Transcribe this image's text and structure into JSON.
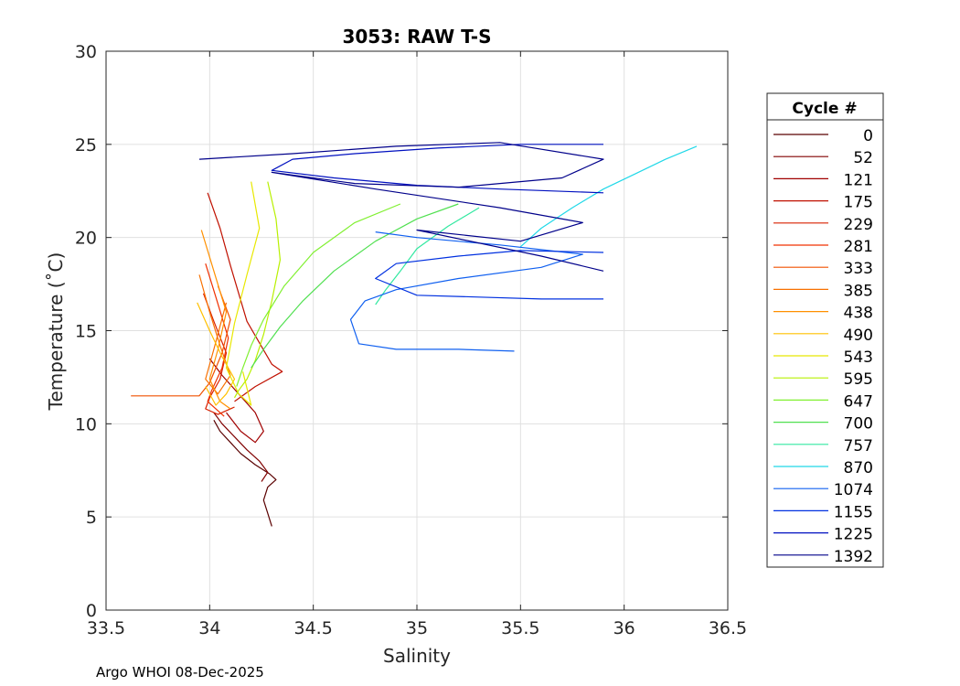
{
  "chart_data": {
    "type": "line",
    "title": "3053: RAW T-S",
    "xlabel": "Salinity",
    "ylabel": "Temperature (˚C)",
    "xlim": [
      33.5,
      36.5
    ],
    "ylim": [
      0,
      30
    ],
    "xticks": [
      "33.5",
      "34",
      "34.5",
      "35",
      "35.5",
      "36",
      "36.5"
    ],
    "yticks": [
      "0",
      "5",
      "10",
      "15",
      "20",
      "25",
      "30"
    ],
    "grid": true,
    "legend": {
      "title": "Cycle #",
      "position": "right",
      "entries": [
        "0",
        "52",
        "121",
        "175",
        "229",
        "281",
        "333",
        "385",
        "438",
        "490",
        "543",
        "595",
        "647",
        "700",
        "757",
        "870",
        "1074",
        "1155",
        "1225",
        "1392"
      ]
    },
    "series": [
      {
        "name": "0",
        "color": "#5a0000",
        "x": [
          34.3,
          34.28,
          34.26,
          34.28,
          34.32,
          34.29,
          34.22,
          34.15,
          34.1,
          34.05,
          34.02
        ],
        "y": [
          4.5,
          5.2,
          5.9,
          6.6,
          7.0,
          7.3,
          7.8,
          8.4,
          9.0,
          9.6,
          10.2
        ]
      },
      {
        "name": "52",
        "color": "#800000",
        "x": [
          34.02,
          34.06,
          34.12,
          34.18,
          34.24,
          34.28,
          34.25
        ],
        "y": [
          10.6,
          10.0,
          9.3,
          8.6,
          8.0,
          7.4,
          6.9
        ]
      },
      {
        "name": "121",
        "color": "#a00000",
        "x": [
          34.0,
          34.06,
          34.14,
          34.22,
          34.26,
          34.22,
          34.15,
          34.08
        ],
        "y": [
          13.5,
          12.6,
          11.6,
          10.6,
          9.6,
          9.0,
          9.6,
          10.6
        ]
      },
      {
        "name": "175",
        "color": "#c01000",
        "x": [
          33.99,
          34.05,
          34.1,
          34.18,
          34.3,
          34.35,
          34.22,
          34.12
        ],
        "y": [
          22.4,
          20.5,
          18.5,
          15.5,
          13.2,
          12.8,
          12.0,
          11.2
        ]
      },
      {
        "name": "229",
        "color": "#d82000",
        "x": [
          33.97,
          34.02,
          34.08,
          34.05,
          34.0,
          33.98,
          34.04,
          34.12
        ],
        "y": [
          17.0,
          15.5,
          13.8,
          12.4,
          11.4,
          10.8,
          10.5,
          10.9
        ]
      },
      {
        "name": "281",
        "color": "#f03000",
        "x": [
          33.98,
          34.03,
          34.09,
          34.06,
          34.01,
          33.99,
          34.07
        ],
        "y": [
          18.6,
          16.8,
          14.6,
          13.0,
          11.8,
          11.2,
          10.4
        ]
      },
      {
        "name": "333",
        "color": "#f05000",
        "x": [
          33.62,
          33.8,
          33.95,
          34.0,
          34.06,
          34.1,
          34.04
        ],
        "y": [
          11.5,
          11.5,
          11.5,
          12.2,
          13.8,
          15.6,
          17.4
        ]
      },
      {
        "name": "385",
        "color": "#f87000",
        "x": [
          33.95,
          34.0,
          34.05,
          34.1,
          34.04,
          33.98,
          34.02,
          34.08
        ],
        "y": [
          18.0,
          16.0,
          14.2,
          12.6,
          11.6,
          12.4,
          14.0,
          16.5
        ]
      },
      {
        "name": "438",
        "color": "#ff9000",
        "x": [
          33.96,
          34.02,
          34.08,
          34.04,
          34.0,
          34.05,
          34.1
        ],
        "y": [
          20.4,
          18.2,
          16.0,
          14.0,
          12.4,
          11.2,
          10.8
        ]
      },
      {
        "name": "490",
        "color": "#ffc000",
        "x": [
          33.94,
          34.0,
          34.06,
          34.12,
          34.08,
          34.03,
          33.98
        ],
        "y": [
          16.5,
          15.0,
          13.6,
          12.4,
          11.6,
          11.0,
          12.0
        ]
      },
      {
        "name": "543",
        "color": "#e8e800",
        "x": [
          34.2,
          34.24,
          34.18,
          34.12,
          34.08,
          34.14,
          34.2,
          34.16
        ],
        "y": [
          23.0,
          20.5,
          18.0,
          15.4,
          13.0,
          11.6,
          11.0,
          12.8
        ]
      },
      {
        "name": "595",
        "color": "#b8f000",
        "x": [
          34.28,
          34.32,
          34.34,
          34.3,
          34.26,
          34.22,
          34.18,
          34.14,
          34.12
        ],
        "y": [
          23.0,
          21.0,
          18.8,
          16.6,
          14.8,
          13.4,
          12.4,
          11.8,
          11.4
        ]
      },
      {
        "name": "647",
        "color": "#80f030",
        "x": [
          34.92,
          34.7,
          34.5,
          34.36,
          34.26,
          34.2,
          34.16,
          34.13
        ],
        "y": [
          21.8,
          20.8,
          19.2,
          17.4,
          15.6,
          14.2,
          13.0,
          12.0
        ]
      },
      {
        "name": "700",
        "color": "#50e050",
        "x": [
          35.2,
          35.0,
          34.8,
          34.6,
          34.45,
          34.34,
          34.26,
          34.2
        ],
        "y": [
          21.8,
          21.0,
          19.8,
          18.2,
          16.6,
          15.2,
          14.0,
          13.0
        ]
      },
      {
        "name": "757",
        "color": "#30e8a0",
        "x": [
          35.3,
          35.15,
          35.0,
          34.92,
          34.85,
          34.8
        ],
        "y": [
          21.6,
          20.6,
          19.4,
          18.2,
          17.2,
          16.4
        ]
      },
      {
        "name": "870",
        "color": "#20d8e8",
        "x": [
          36.35,
          36.2,
          36.05,
          35.9,
          35.75,
          35.6,
          35.5
        ],
        "y": [
          24.9,
          24.2,
          23.4,
          22.6,
          21.6,
          20.5,
          19.5
        ]
      },
      {
        "name": "1074",
        "color": "#1060f0",
        "x": [
          35.47,
          35.2,
          34.9,
          34.72,
          34.68,
          34.75,
          34.9,
          35.2,
          35.6,
          35.8,
          35.4,
          35.0,
          34.8
        ],
        "y": [
          13.9,
          14.0,
          14.0,
          14.3,
          15.6,
          16.6,
          17.2,
          17.8,
          18.4,
          19.1,
          19.6,
          20.0,
          20.3
        ]
      },
      {
        "name": "1155",
        "color": "#0030e0",
        "x": [
          35.9,
          35.6,
          35.3,
          35.0,
          34.8,
          34.9,
          35.2,
          35.5,
          35.9
        ],
        "y": [
          16.7,
          16.7,
          16.8,
          16.9,
          17.8,
          18.6,
          19.0,
          19.3,
          19.2
        ]
      },
      {
        "name": "1225",
        "color": "#0010c0",
        "x": [
          35.9,
          35.5,
          35.1,
          34.7,
          34.4,
          34.3,
          34.6,
          35.0,
          35.4,
          35.9
        ],
        "y": [
          25.0,
          25.0,
          24.8,
          24.5,
          24.2,
          23.6,
          23.2,
          22.8,
          22.6,
          22.4
        ]
      },
      {
        "name": "1392",
        "color": "#00008a",
        "x": [
          33.95,
          34.4,
          34.9,
          35.4,
          35.9,
          35.7,
          35.2,
          34.7,
          34.3,
          34.8,
          35.4,
          35.8,
          35.5,
          35.0,
          35.6,
          35.9
        ],
        "y": [
          24.2,
          24.5,
          24.9,
          25.1,
          24.2,
          23.2,
          22.7,
          22.9,
          23.5,
          22.6,
          21.6,
          20.8,
          19.8,
          20.4,
          19.0,
          18.2
        ]
      }
    ]
  },
  "footer": {
    "text": "Argo WHOI 08-Dec-2025"
  }
}
